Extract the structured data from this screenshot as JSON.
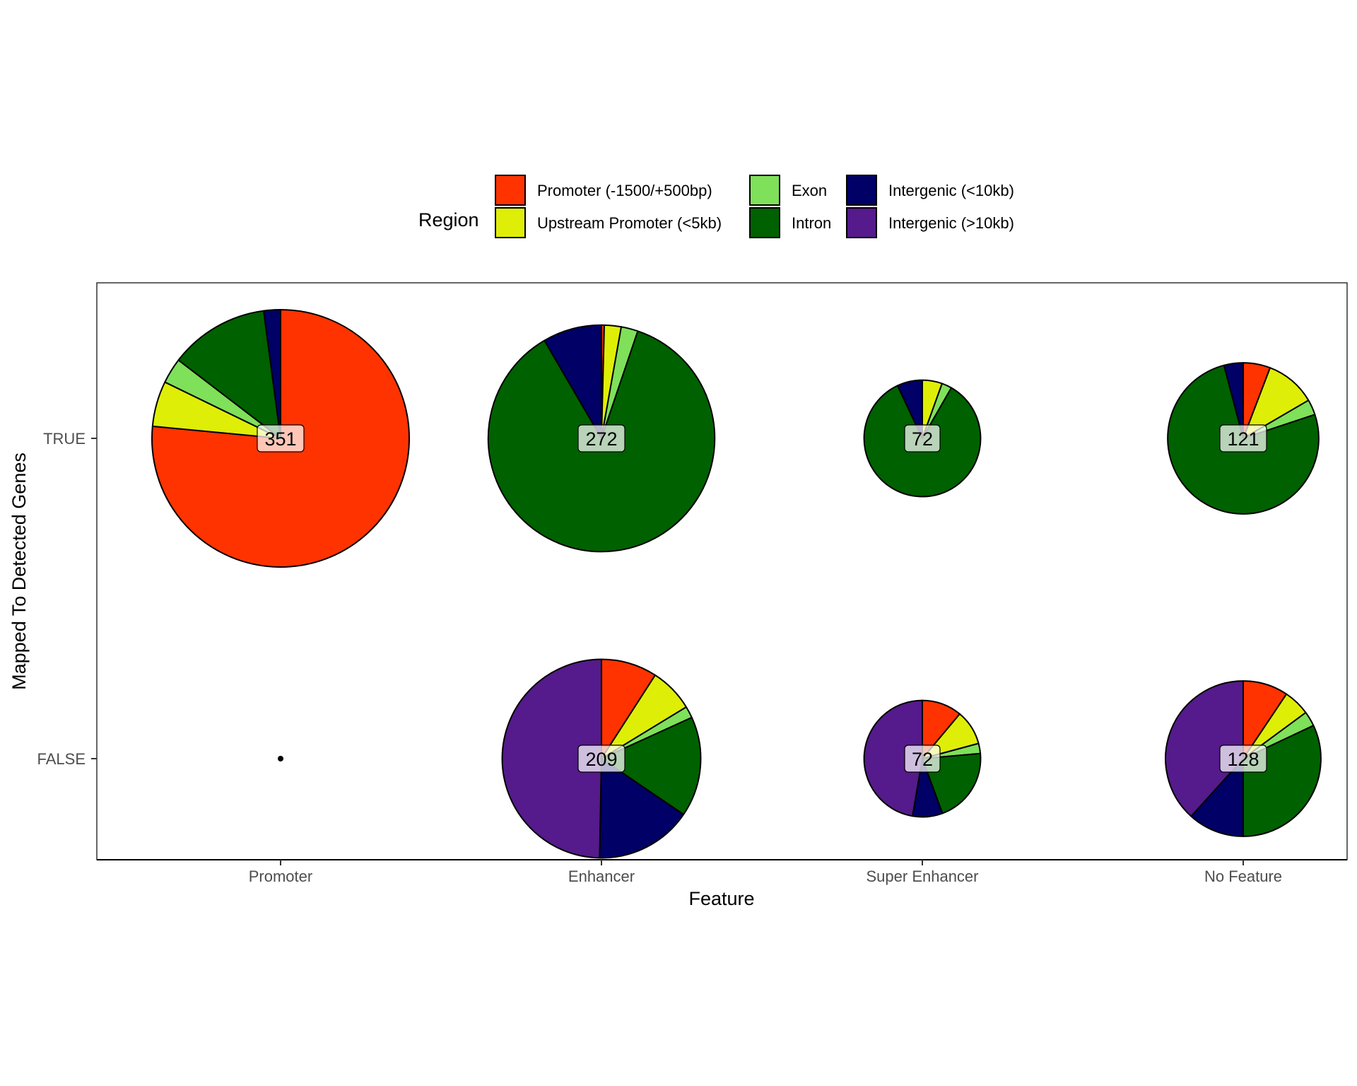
{
  "chart_data": {
    "type": "pie",
    "subtype": "scatter-pie grid",
    "xlabel": "Feature",
    "ylabel": "Mapped To Detected Genes",
    "x_categories": [
      "Promoter",
      "Enhancer",
      "Super Enhancer",
      "No Feature"
    ],
    "y_categories": [
      "TRUE",
      "FALSE"
    ],
    "grid": false,
    "legend": {
      "title": "Region",
      "position": "top",
      "entries": [
        {
          "name": "Promoter (-1500/+500bp)",
          "color": "#ff3300"
        },
        {
          "name": "Upstream Promoter (<5kb)",
          "color": "#dfee07"
        },
        {
          "name": "Exon",
          "color": "#7fe05a"
        },
        {
          "name": "Intron",
          "color": "#006100"
        },
        {
          "name": "Intergenic (<10kb)",
          "color": "#000066"
        },
        {
          "name": "Intergenic (>10kb)",
          "color": "#551a8b"
        }
      ]
    },
    "pies": [
      {
        "feature": "Promoter",
        "mapped": "TRUE",
        "total": 351,
        "label": "351",
        "values": [
          0.765,
          0.057,
          0.032,
          0.125,
          0.021,
          0
        ]
      },
      {
        "feature": "Enhancer",
        "mapped": "TRUE",
        "total": 272,
        "label": "272",
        "values": [
          0.004,
          0.024,
          0.024,
          0.864,
          0.084,
          0
        ]
      },
      {
        "feature": "Super Enhancer",
        "mapped": "TRUE",
        "total": 72,
        "label": "72",
        "values": [
          0,
          0.055,
          0.028,
          0.847,
          0.07,
          0
        ]
      },
      {
        "feature": "No Feature",
        "mapped": "TRUE",
        "total": 121,
        "label": "121",
        "values": [
          0.058,
          0.108,
          0.033,
          0.76,
          0.041,
          0
        ]
      },
      {
        "feature": "Promoter",
        "mapped": "FALSE",
        "total": 1,
        "label": "",
        "values": [
          1,
          0,
          0,
          0,
          0,
          0
        ]
      },
      {
        "feature": "Enhancer",
        "mapped": "FALSE",
        "total": 209,
        "label": "209",
        "values": [
          0.091,
          0.072,
          0.019,
          0.163,
          0.158,
          0.497
        ]
      },
      {
        "feature": "Super Enhancer",
        "mapped": "FALSE",
        "total": 72,
        "label": "72",
        "values": [
          0.111,
          0.097,
          0.028,
          0.208,
          0.083,
          0.473
        ]
      },
      {
        "feature": "No Feature",
        "mapped": "FALSE",
        "total": 128,
        "label": "128",
        "values": [
          0.094,
          0.055,
          0.031,
          0.32,
          0.117,
          0.383
        ]
      }
    ]
  }
}
